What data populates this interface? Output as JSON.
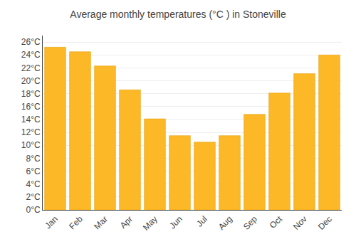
{
  "chart_data": {
    "type": "bar",
    "title": "Average monthly temperatures (°C ) in Stoneville",
    "categories": [
      "Jan",
      "Feb",
      "Mar",
      "Apr",
      "May",
      "Jun",
      "Jul",
      "Aug",
      "Sep",
      "Oct",
      "Nov",
      "Dec"
    ],
    "values": [
      25.2,
      24.5,
      22.3,
      18.6,
      14.1,
      11.5,
      10.5,
      11.5,
      14.8,
      18.1,
      21.1,
      24.0
    ],
    "color": "#FDB827",
    "ylim": [
      0,
      27
    ],
    "yticks": [
      {
        "value": 0,
        "label": "0°C"
      },
      {
        "value": 2,
        "label": "2°C"
      },
      {
        "value": 4,
        "label": "4°C"
      },
      {
        "value": 6,
        "label": "6°C"
      },
      {
        "value": 8,
        "label": "8°C"
      },
      {
        "value": 10,
        "label": "10°C"
      },
      {
        "value": 12,
        "label": "12°C"
      },
      {
        "value": 14,
        "label": "14°C"
      },
      {
        "value": 16,
        "label": "16°C"
      },
      {
        "value": 18,
        "label": "18°C"
      },
      {
        "value": 20,
        "label": "20°C"
      },
      {
        "value": 22,
        "label": "22°C"
      },
      {
        "value": 24,
        "label": "24°C"
      },
      {
        "value": 26,
        "label": "26°C"
      }
    ],
    "grid": true
  }
}
